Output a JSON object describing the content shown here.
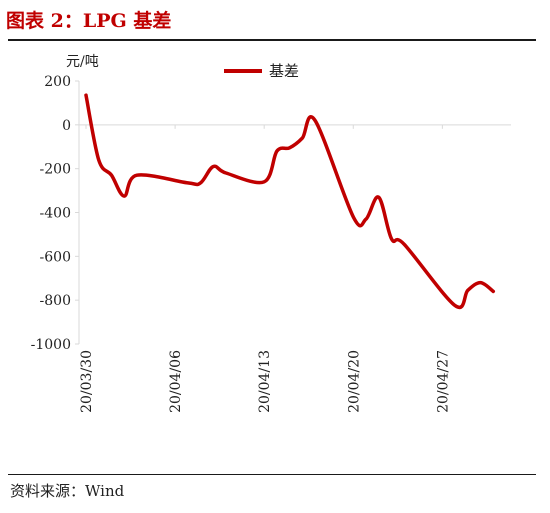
{
  "header": {
    "title": "图表 2：LPG 基差"
  },
  "footer": {
    "source": "资料来源：Wind"
  },
  "colors": {
    "series": "#c00000",
    "title": "#c00000",
    "axis": "#d9d9d9"
  },
  "chart_data": {
    "type": "line",
    "title": "图表 2：LPG 基差",
    "ylabel": "元/吨",
    "xlabel": "",
    "ylim": [
      -1000,
      200
    ],
    "yticks": [
      200,
      0,
      -200,
      -400,
      -600,
      -800,
      -1000
    ],
    "xticks": [
      "20/03/30",
      "20/04/06",
      "20/04/13",
      "20/04/20",
      "20/04/27"
    ],
    "xrange": [
      "2020-03-30",
      "2020-05-02"
    ],
    "grid": false,
    "legend": "top",
    "series": [
      {
        "name": "基差",
        "points": [
          [
            "2020-03-30",
            135
          ],
          [
            "2020-03-31",
            -160
          ],
          [
            "2020-04-01",
            -230
          ],
          [
            "2020-04-02",
            -325
          ],
          [
            "2020-04-03",
            -230
          ],
          [
            "2020-04-07",
            -265
          ],
          [
            "2020-04-08",
            -265
          ],
          [
            "2020-04-09",
            -190
          ],
          [
            "2020-04-10",
            -220
          ],
          [
            "2020-04-13",
            -260
          ],
          [
            "2020-04-14",
            -120
          ],
          [
            "2020-04-15",
            -105
          ],
          [
            "2020-04-16",
            -60
          ],
          [
            "2020-04-17",
            20
          ],
          [
            "2020-04-20",
            -420
          ],
          [
            "2020-04-21",
            -430
          ],
          [
            "2020-04-22",
            -330
          ],
          [
            "2020-04-23",
            -520
          ],
          [
            "2020-04-24",
            -545
          ],
          [
            "2020-04-28",
            -825
          ],
          [
            "2020-04-29",
            -755
          ],
          [
            "2020-04-30",
            -720
          ],
          [
            "2020-05-01",
            -760
          ]
        ]
      }
    ]
  }
}
